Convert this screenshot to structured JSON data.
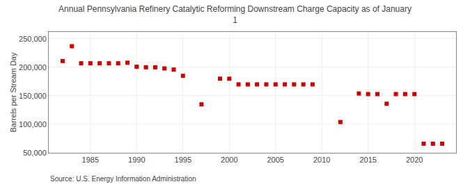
{
  "chart_data": {
    "type": "scatter",
    "title": "Annual Pennsylvania Refinery Catalytic Reforming Downstream Charge Capacity as of January\n1",
    "y_label": "Barrels per Stream Day",
    "annotations": [
      "Source: U.S. Energy Information Administration"
    ],
    "x": [
      1982,
      1983,
      1984,
      1985,
      1986,
      1987,
      1988,
      1989,
      1990,
      1991,
      1992,
      1993,
      1994,
      1995,
      1997,
      1999,
      2000,
      2001,
      2002,
      2003,
      2004,
      2005,
      2006,
      2007,
      2008,
      2009,
      2012,
      2014,
      2015,
      2016,
      2017,
      2018,
      2019,
      2020,
      2021,
      2022,
      2023
    ],
    "values": [
      211000,
      237000,
      207000,
      207000,
      207000,
      207000,
      207000,
      208000,
      201000,
      200000,
      200000,
      198000,
      196000,
      185000,
      135000,
      180000,
      180000,
      170000,
      170000,
      170000,
      170000,
      170000,
      170000,
      170000,
      170000,
      170000,
      104000,
      154000,
      153000,
      153000,
      136000,
      153000,
      153000,
      153000,
      66000,
      66000,
      66000
    ],
    "color": "#cc0000",
    "marker": "square",
    "xlim": [
      1980.5,
      2024.5
    ],
    "xticks": [
      1985,
      1990,
      1995,
      2000,
      2005,
      2010,
      2015,
      2020
    ],
    "ylim": [
      50000,
      262000
    ],
    "yticks": [
      {
        "value": 50000,
        "label": "50,000"
      },
      {
        "value": 100000,
        "label": "100,000"
      },
      {
        "value": 150000,
        "label": "150,000"
      },
      {
        "value": 200000,
        "label": "200,000"
      },
      {
        "value": 250000,
        "label": "250,000"
      }
    ],
    "grid": true
  }
}
